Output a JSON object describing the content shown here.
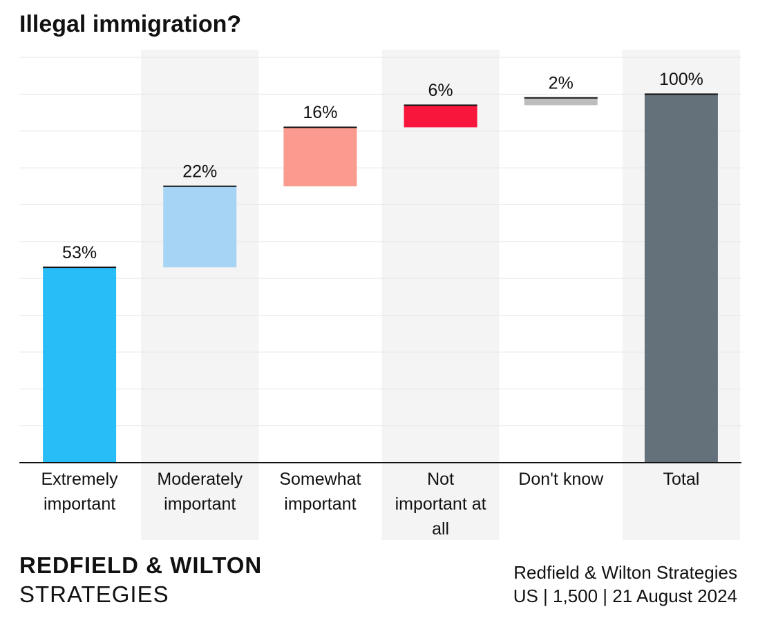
{
  "chart_data": {
    "type": "waterfall",
    "title": "Illegal immigration?",
    "categories": [
      "Extremely important",
      "Moderately important",
      "Somewhat important",
      "Not important at all",
      "Don't know",
      "Total"
    ],
    "values": [
      53,
      22,
      16,
      6,
      2,
      100
    ],
    "value_labels": [
      "53%",
      "22%",
      "16%",
      "6%",
      "2%",
      "100%"
    ],
    "measure": [
      "relative",
      "relative",
      "relative",
      "relative",
      "relative",
      "total"
    ],
    "colors": [
      "#29bdf7",
      "#a6d4f4",
      "#fb9b8f",
      "#f9163c",
      "#bdbdbd",
      "#64707a"
    ],
    "ylim": [
      0,
      110
    ],
    "yticks": [
      0,
      10,
      20,
      30,
      40,
      50,
      60,
      70,
      80,
      90,
      100,
      110
    ],
    "show_ytick_labels": false,
    "grid": true
  },
  "footer": {
    "brand_line1": "REDFIELD & WILTON",
    "brand_line2": "STRATEGIES",
    "source_line1": "Redfield & Wilton Strategies",
    "source_line2": "US | 1,500 | 21 August 2024"
  }
}
